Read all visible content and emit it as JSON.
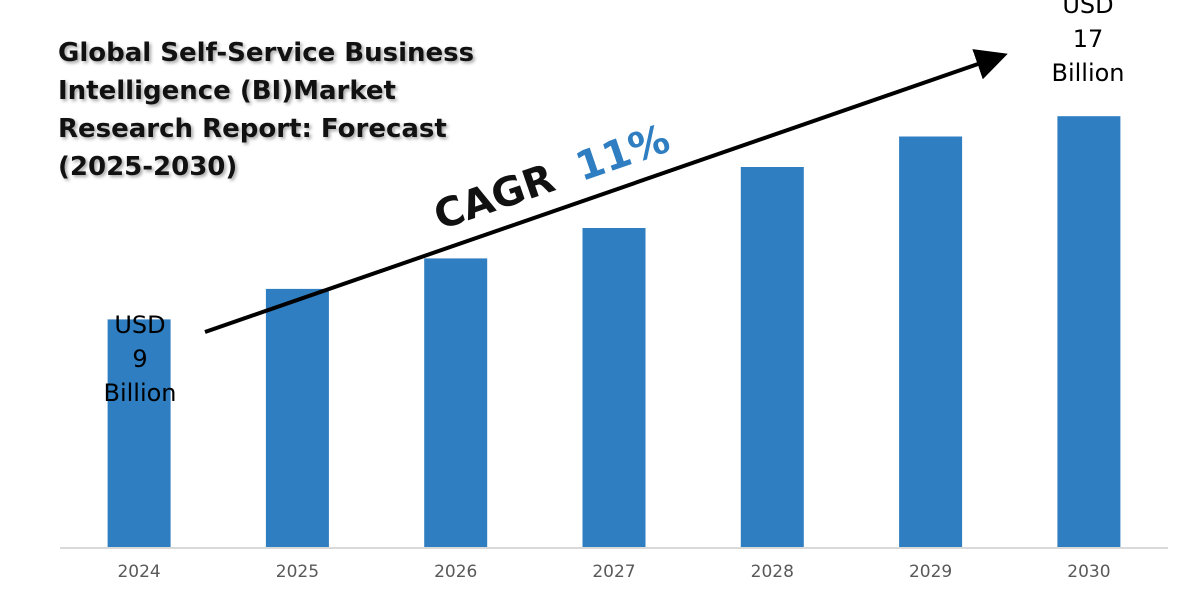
{
  "chart_data": {
    "type": "bar",
    "title_lines": [
      "Global Self-Service Business",
      "Intelligence (BI)Market",
      "Research Report: Forecast",
      "(2025-2030)"
    ],
    "categories": [
      "2024",
      "2025",
      "2026",
      "2027",
      "2028",
      "2029",
      "2030"
    ],
    "values": [
      9,
      10.2,
      11.4,
      12.6,
      15.0,
      16.2,
      17
    ],
    "ylim": [
      0,
      20
    ],
    "grid": false,
    "legend": "none",
    "annotations": {
      "start": [
        "USD",
        "9",
        "Billion"
      ],
      "end": [
        "USD",
        "17",
        "Billion"
      ]
    },
    "cagr": {
      "label": "CAGR",
      "value": "11%"
    }
  },
  "colors": {
    "bar": "#2e7ec1",
    "cagr_value": "#2e7ec1",
    "axis": "#d9d9d9",
    "text": "#111111",
    "arrow": "#000000"
  }
}
